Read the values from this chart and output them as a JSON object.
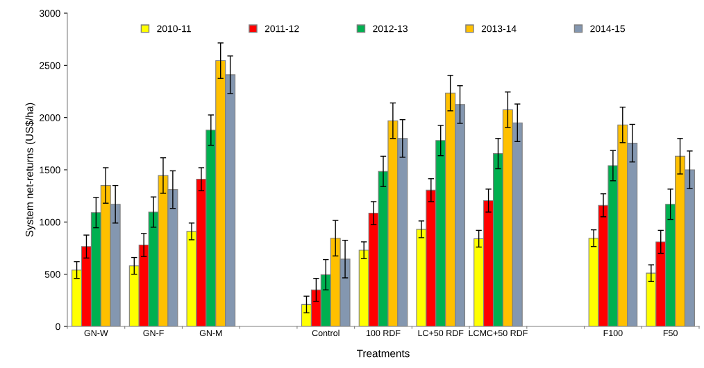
{
  "chart_data": {
    "type": "bar",
    "xlabel": "Treatments",
    "ylabel": "System net-returns (US$/ha)",
    "categories": [
      "GN-W",
      "GN-F",
      "GN-M",
      null,
      "Control",
      "100 RDF",
      "LC+50 RDF",
      "LCMC+50 RDF",
      null,
      "F100",
      "F50"
    ],
    "series": [
      {
        "name": "2010-11",
        "color": "#ffff00",
        "values": [
          540,
          580,
          910,
          null,
          210,
          730,
          930,
          840,
          null,
          845,
          510
        ],
        "errors": [
          80,
          80,
          80,
          null,
          80,
          80,
          80,
          80,
          null,
          80,
          80
        ]
      },
      {
        "name": "2011-12",
        "color": "#ff0000",
        "values": [
          765,
          780,
          1410,
          null,
          350,
          1085,
          1305,
          1205,
          null,
          1160,
          810
        ],
        "errors": [
          110,
          110,
          110,
          null,
          110,
          110,
          110,
          110,
          null,
          110,
          110
        ]
      },
      {
        "name": "2012-13",
        "color": "#00b050",
        "values": [
          1090,
          1095,
          1880,
          null,
          495,
          1485,
          1780,
          1655,
          null,
          1540,
          1170
        ],
        "errors": [
          145,
          145,
          145,
          null,
          145,
          145,
          145,
          145,
          null,
          145,
          145
        ]
      },
      {
        "name": "2013-14",
        "color": "#ffc000",
        "values": [
          1350,
          1445,
          2545,
          null,
          845,
          1970,
          2235,
          2075,
          null,
          1930,
          1630
        ],
        "errors": [
          170,
          170,
          170,
          null,
          170,
          170,
          170,
          170,
          null,
          170,
          170
        ]
      },
      {
        "name": "2014-15",
        "color": "#8497b0",
        "values": [
          1170,
          1310,
          2410,
          null,
          645,
          1800,
          2125,
          1950,
          null,
          1755,
          1500
        ],
        "errors": [
          180,
          180,
          180,
          null,
          180,
          180,
          180,
          180,
          null,
          180,
          180
        ]
      }
    ],
    "ylim": [
      0,
      3000
    ],
    "yticks": [
      0,
      500,
      1000,
      1500,
      2000,
      2500,
      3000
    ],
    "grid": false,
    "legend": "top"
  }
}
